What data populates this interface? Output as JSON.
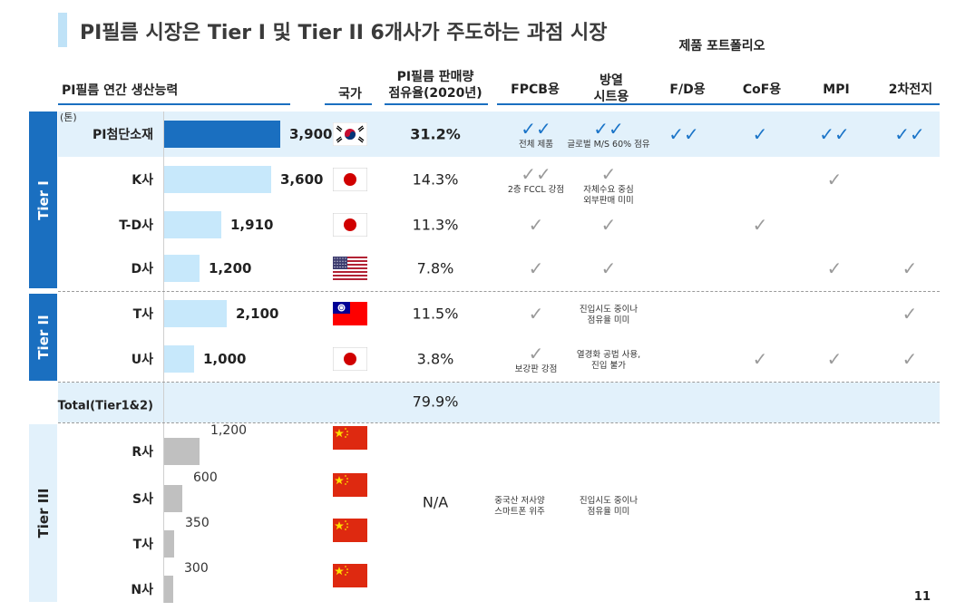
{
  "title": "PI필름 시장은 Tier I 및 Tier II 6개사가 주도하는 과점 시장",
  "headers": {
    "capacity": "PI필름 연간 생산능력",
    "country": "국가",
    "share_line1": "PI필름 판매량",
    "share_line2": "점유율(2020년)",
    "portfolio": "제품 포트폴리오",
    "fpcb": "FPCB용",
    "heat_line1": "방열",
    "heat_line2": "시트용",
    "fd": "F/D용",
    "cof": "CoF용",
    "mpi": "MPI",
    "battery": "2차전지"
  },
  "unit": "(톤)",
  "tiers": {
    "tier1": "Tier I",
    "tier2": "Tier II",
    "tier3": "Tier III"
  },
  "colors": {
    "tier_blue": "#1a6fc0",
    "bar_dark": "#1a6fc0",
    "bar_light": "#c7e8fb",
    "bar_gray": "#c0c0c0",
    "band": "#e2f1fb",
    "check_blue": "#1a74c8",
    "check_gray": "#9a9a9a"
  },
  "max_capacity": 3900,
  "companies": [
    {
      "name": "PI첨단소재",
      "capacity": 3900,
      "capacity_label": "3,900",
      "country": "korea",
      "share": "31.2%",
      "bar": "dark",
      "checks": {
        "fpcb": "✓✓",
        "heat": "✓✓",
        "fd": "✓✓",
        "cof": "✓",
        "mpi": "✓✓",
        "battery": "✓✓"
      },
      "notes": {
        "fpcb": "전체 제품",
        "heat": "글로벌 M/S 60% 점유"
      }
    },
    {
      "name": "K사",
      "capacity": 3600,
      "capacity_label": "3,600",
      "country": "japan",
      "share": "14.3%",
      "bar": "light",
      "checks": {
        "fpcb": "✓✓",
        "heat": "✓",
        "mpi": "✓"
      },
      "notes": {
        "fpcb": "2층 FCCL 강점",
        "heat": "자체수요 중심\n외부판매 미미"
      }
    },
    {
      "name": "T-D사",
      "capacity": 1910,
      "capacity_label": "1,910",
      "country": "japan",
      "share": "11.3%",
      "bar": "light",
      "checks": {
        "fpcb": "✓",
        "heat": "✓",
        "cof": "✓"
      }
    },
    {
      "name": "D사",
      "capacity": 1200,
      "capacity_label": "1,200",
      "country": "usa",
      "share": "7.8%",
      "bar": "light",
      "checks": {
        "fpcb": "✓",
        "heat": "✓",
        "mpi": "✓",
        "battery": "✓"
      }
    },
    {
      "name": "T사",
      "capacity": 2100,
      "capacity_label": "2,100",
      "country": "taiwan",
      "share": "11.5%",
      "bar": "light",
      "checks": {
        "fpcb": "✓",
        "battery": "✓"
      },
      "notes": {
        "heat": "진입시도 중이나\n점유율 미미"
      }
    },
    {
      "name": "U사",
      "capacity": 1000,
      "capacity_label": "1,000",
      "country": "japan",
      "share": "3.8%",
      "bar": "light",
      "checks": {
        "fpcb": "✓",
        "cof": "✓",
        "mpi": "✓",
        "battery": "✓"
      },
      "notes": {
        "fpcb": "보강판 강점",
        "heat": "열경화 공법 사용,\n진입 불가"
      }
    }
  ],
  "total": {
    "label": "Total(Tier1&2)",
    "share": "79.9%"
  },
  "tier3": [
    {
      "name": "R사",
      "capacity": 1200,
      "capacity_label": "1,200",
      "country": "china"
    },
    {
      "name": "S사",
      "capacity": 600,
      "capacity_label": "600",
      "country": "china"
    },
    {
      "name": "T사",
      "capacity": 350,
      "capacity_label": "350",
      "country": "china"
    },
    {
      "name": "N사",
      "capacity": 300,
      "capacity_label": "300",
      "country": "china"
    }
  ],
  "tier3_share": "N/A",
  "tier3_notes": {
    "fpcb": "중국산 저사양\n스마트폰 위주",
    "heat": "진입시도 중이나\n점유율 미미"
  },
  "page_number": "11"
}
